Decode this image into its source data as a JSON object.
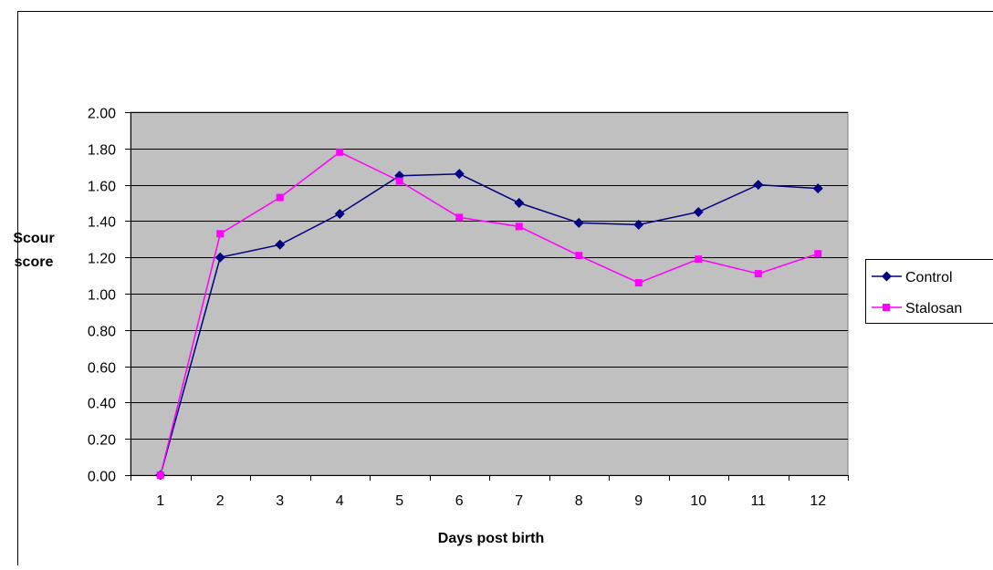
{
  "chart_data": {
    "type": "line",
    "title": "",
    "xlabel": "Days post birth",
    "ylabel": [
      "Scour",
      "score"
    ],
    "categories": [
      "1",
      "2",
      "3",
      "4",
      "5",
      "6",
      "7",
      "8",
      "9",
      "10",
      "11",
      "12"
    ],
    "ylim": [
      0,
      2
    ],
    "yticks": [
      "0.00",
      "0.20",
      "0.40",
      "0.60",
      "0.80",
      "1.00",
      "1.20",
      "1.40",
      "1.60",
      "1.80",
      "2.00"
    ],
    "grid": true,
    "legend_position": "right",
    "plot_background": "#c0c0c0",
    "series": [
      {
        "name": "Control",
        "color": "#000080",
        "marker": "diamond",
        "values": [
          0.0,
          1.2,
          1.27,
          1.44,
          1.65,
          1.66,
          1.5,
          1.39,
          1.38,
          1.45,
          1.6,
          1.58
        ]
      },
      {
        "name": "Stalosan",
        "color": "#ff00ff",
        "marker": "square",
        "values": [
          0.0,
          1.33,
          1.53,
          1.78,
          1.62,
          1.42,
          1.37,
          1.21,
          1.06,
          1.19,
          1.11,
          1.22
        ]
      }
    ]
  }
}
